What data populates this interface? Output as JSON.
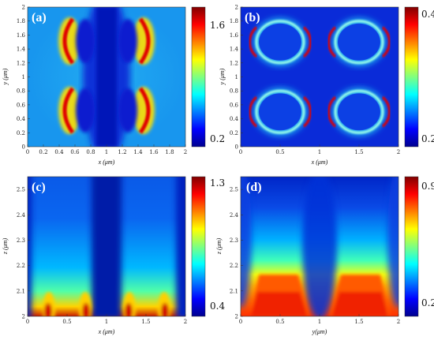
{
  "chart_data": [
    {
      "type": "heatmap",
      "panel_label": "(a)",
      "xlabel": "x (μm)",
      "ylabel": "y (μm)",
      "xlim": [
        0,
        2
      ],
      "ylim": [
        0,
        2
      ],
      "xticks": [
        "0",
        "0.2",
        "0.4",
        "0.6",
        "0.8",
        "1",
        "1.2",
        "1.4",
        "1.6",
        "1.8",
        "2"
      ],
      "yticks": [
        "0",
        "0.2",
        "0.4",
        "0.6",
        "0.8",
        "1",
        "1.2",
        "1.4",
        "1.6",
        "1.8",
        "2"
      ],
      "colorbar_range": [
        0.2,
        1.6
      ],
      "colorbar_ticks": [
        "1.6",
        "0.2"
      ],
      "colormap": "jet"
    },
    {
      "type": "heatmap",
      "panel_label": "(b)",
      "xlabel": "x (μm)",
      "ylabel": "y (μm)",
      "xlim": [
        0,
        2
      ],
      "ylim": [
        0,
        2
      ],
      "xticks": [
        "0",
        "0.5",
        "1",
        "1.5",
        "2"
      ],
      "yticks": [
        "0",
        "0.2",
        "0.4",
        "0.6",
        "0.8",
        "1",
        "1.2",
        "1.4",
        "1.6",
        "1.8",
        "2"
      ],
      "colorbar_range": [
        0,
        0.4
      ],
      "colorbar_ticks": [
        "0.4",
        "0.2"
      ],
      "colormap": "jet"
    },
    {
      "type": "heatmap",
      "panel_label": "(c)",
      "xlabel": "x (μm)",
      "ylabel": "z (μm)",
      "xlim": [
        0,
        2
      ],
      "ylim": [
        2,
        2.55
      ],
      "xticks": [
        "0",
        "0.5",
        "1",
        "1.5",
        "2"
      ],
      "yticks": [
        "2",
        "2.1",
        "2.2",
        "2.3",
        "2.4",
        "2.5"
      ],
      "colorbar_range": [
        0.4,
        1.3
      ],
      "colorbar_ticks": [
        "1.3",
        "0.4"
      ],
      "colormap": "jet"
    },
    {
      "type": "heatmap",
      "panel_label": "(d)",
      "xlabel": "y(μm)",
      "ylabel": "z (μm)",
      "xlim": [
        0,
        2
      ],
      "ylim": [
        2,
        2.55
      ],
      "xticks": [
        "0",
        "0.5",
        "1",
        "1.5",
        "2"
      ],
      "yticks": [
        "2",
        "2.1",
        "2.2",
        "2.3",
        "2.4",
        "2.5"
      ],
      "colorbar_range": [
        0.2,
        0.9
      ],
      "colorbar_ticks": [
        "0.9",
        "0.2"
      ],
      "colormap": "jet"
    }
  ]
}
